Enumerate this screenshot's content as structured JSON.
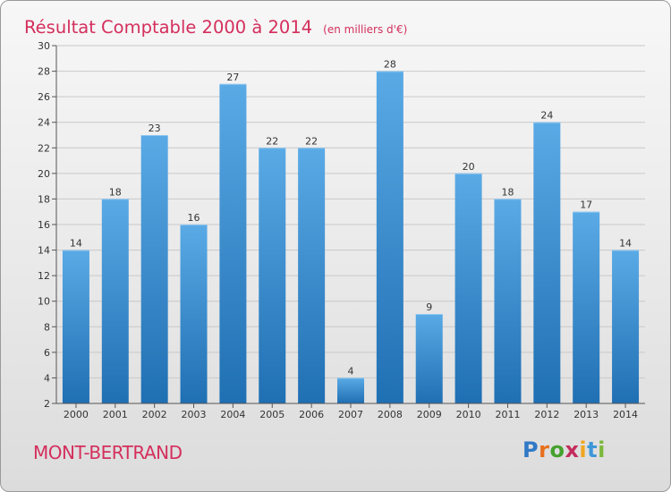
{
  "title": "Résultat Comptable 2000 à 2014",
  "title_unit": "(en milliers d'€)",
  "commune": "MONT-BERTRAND",
  "brand": {
    "text": "Proxiti",
    "letters": [
      "P",
      "r",
      "o",
      "x",
      "i",
      "t",
      "i"
    ],
    "colors": [
      "#2f79c7",
      "#e86f1d",
      "#45a12f",
      "#c32d5c",
      "#f0a620",
      "#3e97d8",
      "#7bb83a"
    ]
  },
  "colors": {
    "bar_top": "#5aaae6",
    "bar_bottom": "#1f6fb3",
    "title": "#d42f5c",
    "grid": "#c8c8c8"
  },
  "chart_data": {
    "type": "bar",
    "title": "Résultat Comptable 2000 à 2014",
    "subtitle": "(en milliers d'€)",
    "xlabel": "",
    "ylabel": "",
    "categories": [
      "2000",
      "2001",
      "2002",
      "2003",
      "2004",
      "2005",
      "2006",
      "2007",
      "2008",
      "2009",
      "2010",
      "2011",
      "2012",
      "2013",
      "2014"
    ],
    "values": [
      14,
      18,
      23,
      16,
      27,
      22,
      22,
      4,
      28,
      9,
      20,
      18,
      24,
      17,
      14
    ],
    "ylim": [
      2,
      30
    ],
    "yticks": [
      2,
      4,
      6,
      8,
      10,
      12,
      14,
      16,
      18,
      20,
      22,
      24,
      26,
      28,
      30
    ],
    "grid": true,
    "data_labels": true
  }
}
